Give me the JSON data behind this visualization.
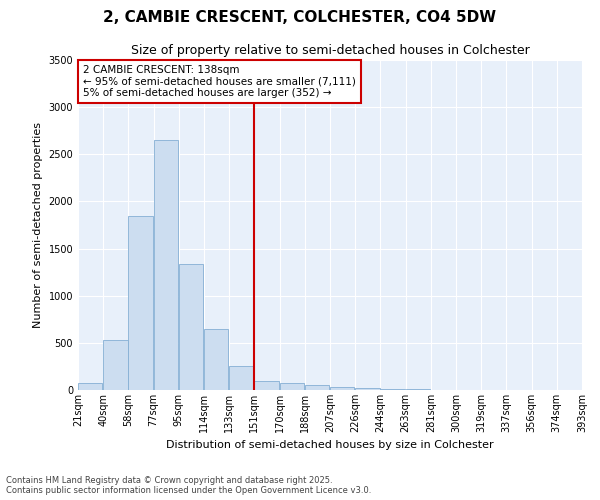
{
  "title": "2, CAMBIE CRESCENT, COLCHESTER, CO4 5DW",
  "subtitle": "Size of property relative to semi-detached houses in Colchester",
  "xlabel": "Distribution of semi-detached houses by size in Colchester",
  "ylabel": "Number of semi-detached properties",
  "bar_color": "#ccddf0",
  "bar_edge_color": "#85afd4",
  "background_color": "#e8f0fa",
  "vline_x": 7,
  "vline_color": "#cc0000",
  "bin_lefts": [
    0,
    1,
    2,
    3,
    4,
    5,
    6,
    7,
    8,
    9,
    10,
    11,
    12,
    13,
    14,
    15,
    16,
    17,
    18,
    19
  ],
  "values": [
    70,
    530,
    1850,
    2650,
    1340,
    650,
    250,
    100,
    75,
    50,
    35,
    20,
    12,
    8,
    5,
    4,
    2,
    1,
    1,
    0
  ],
  "bin_labels": [
    "21sqm",
    "40sqm",
    "58sqm",
    "77sqm",
    "95sqm",
    "114sqm",
    "133sqm",
    "151sqm",
    "170sqm",
    "188sqm",
    "207sqm",
    "226sqm",
    "244sqm",
    "263sqm",
    "281sqm",
    "300sqm",
    "319sqm",
    "337sqm",
    "356sqm",
    "374sqm",
    "393sqm"
  ],
  "annotation_line1": "2 CAMBIE CRESCENT: 138sqm",
  "annotation_line2": "← 95% of semi-detached houses are smaller (7,111)",
  "annotation_line3": "5% of semi-detached houses are larger (352) →",
  "annotation_box_color": "#cc0000",
  "footnote1": "Contains HM Land Registry data © Crown copyright and database right 2025.",
  "footnote2": "Contains public sector information licensed under the Open Government Licence v3.0.",
  "ylim": [
    0,
    3500
  ],
  "yticks": [
    0,
    500,
    1000,
    1500,
    2000,
    2500,
    3000,
    3500
  ],
  "title_fontsize": 11,
  "subtitle_fontsize": 9,
  "axis_label_fontsize": 8,
  "tick_fontsize": 7,
  "annotation_fontsize": 7.5,
  "footnote_fontsize": 6
}
